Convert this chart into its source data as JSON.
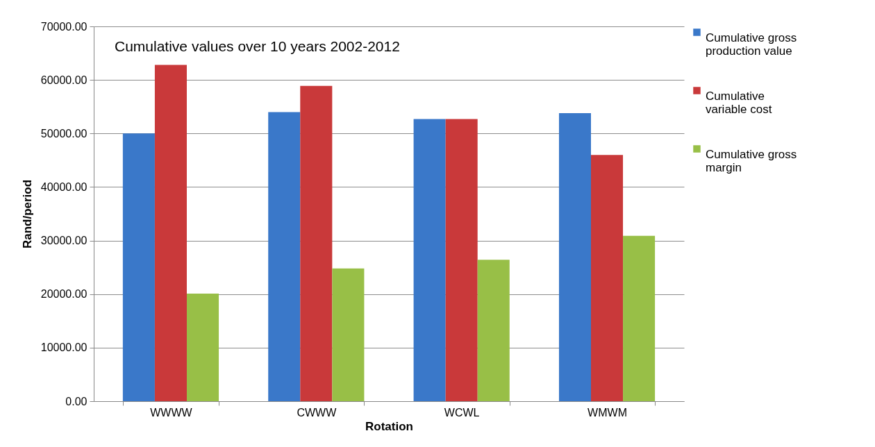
{
  "chart_data": {
    "type": "bar",
    "title": "Cumulative values over 10 years 2002-2012",
    "xlabel": "Rotation",
    "ylabel": "Rand/period",
    "categories": [
      "WWWW",
      "CWWW",
      "WCWL",
      "WMWM"
    ],
    "series": [
      {
        "name": "Cumulative gross production value",
        "color": "#3a78c9",
        "values": [
          50000,
          54000,
          52700,
          53800
        ]
      },
      {
        "name": "Cumulative variable cost",
        "color": "#c9393a",
        "values": [
          62800,
          58900,
          52700,
          46000
        ]
      },
      {
        "name": "Cumulative gross margin",
        "color": "#98bf47",
        "values": [
          20100,
          24800,
          26400,
          30900
        ]
      }
    ],
    "ylim": [
      0,
      70000
    ],
    "yticks": [
      {
        "value": 0,
        "label": "0.00"
      },
      {
        "value": 10000,
        "label": "10000.00"
      },
      {
        "value": 20000,
        "label": "20000.00"
      },
      {
        "value": 30000,
        "label": "30000.00"
      },
      {
        "value": 40000,
        "label": "40000.00"
      },
      {
        "value": 50000,
        "label": "50000.00"
      },
      {
        "value": 60000,
        "label": "60000.00"
      },
      {
        "value": 70000,
        "label": "70000.00"
      }
    ],
    "grid": "y",
    "legend": "right"
  }
}
